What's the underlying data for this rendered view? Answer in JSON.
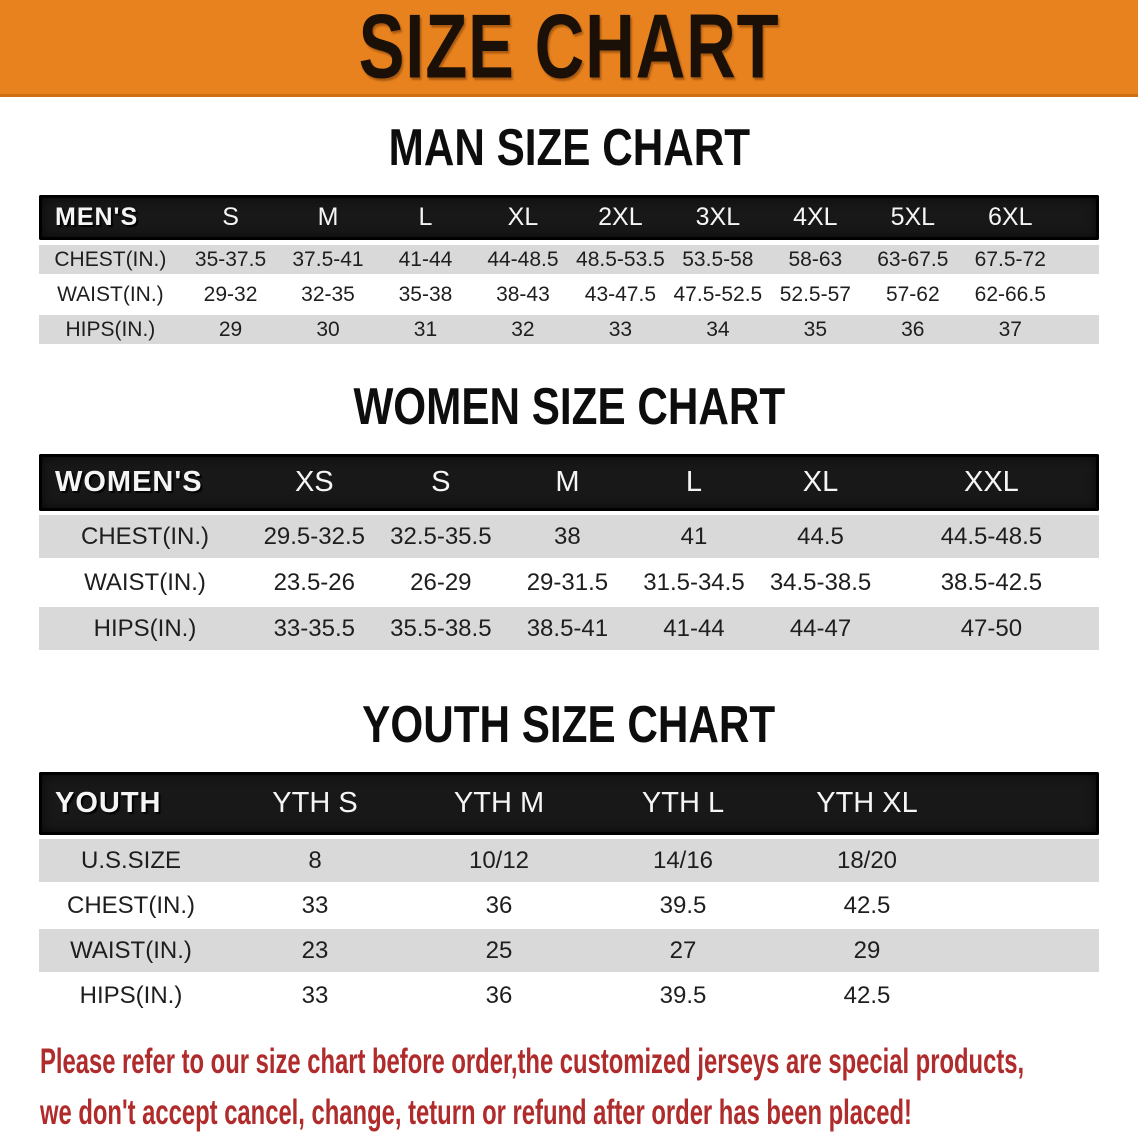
{
  "banner": {
    "title": "SIZE CHART",
    "bg_color": "#E8821E",
    "text_color": "#1A1008"
  },
  "colors": {
    "table_header_bg": "#181818",
    "row_alt_bg": "#D9D9D9",
    "row_bg": "#FFFFFF"
  },
  "sections": {
    "men": {
      "title": "MAN SIZE CHART",
      "header": {
        "label": "MEN'S",
        "sizes": [
          "S",
          "M",
          "L",
          "XL",
          "2XL",
          "3XL",
          "4XL",
          "5XL",
          "6XL"
        ]
      },
      "rows": [
        {
          "label": "CHEST(IN.)",
          "values": [
            "35-37.5",
            "37.5-41",
            "41-44",
            "44-48.5",
            "48.5-53.5",
            "53.5-58",
            "58-63",
            "63-67.5",
            "67.5-72"
          ]
        },
        {
          "label": "WAIST(IN.)",
          "values": [
            "29-32",
            "32-35",
            "35-38",
            "38-43",
            "43-47.5",
            "47.5-52.5",
            "52.5-57",
            "57-62",
            "62-66.5"
          ]
        },
        {
          "label": "HIPS(IN.)",
          "values": [
            "29",
            "30",
            "31",
            "32",
            "33",
            "34",
            "35",
            "36",
            "37"
          ]
        }
      ]
    },
    "women": {
      "title": "WOMEN SIZE CHART",
      "header": {
        "label": "WOMEN'S",
        "sizes": [
          "XS",
          "S",
          "M",
          "L",
          "XL",
          "XXL"
        ]
      },
      "rows": [
        {
          "label": "CHEST(IN.)",
          "values": [
            "29.5-32.5",
            "32.5-35.5",
            "38",
            "41",
            "44.5",
            "44.5-48.5"
          ]
        },
        {
          "label": "WAIST(IN.)",
          "values": [
            "23.5-26",
            "26-29",
            "29-31.5",
            "31.5-34.5",
            "34.5-38.5",
            "38.5-42.5"
          ]
        },
        {
          "label": "HIPS(IN.)",
          "values": [
            "33-35.5",
            "35.5-38.5",
            "38.5-41",
            "41-44",
            "44-47",
            "47-50"
          ]
        }
      ]
    },
    "youth": {
      "title": "YOUTH SIZE CHART",
      "header": {
        "label": "YOUTH",
        "sizes": [
          "YTH S",
          "YTH M",
          "YTH L",
          "YTH XL"
        ]
      },
      "rows": [
        {
          "label": "U.S.SIZE",
          "values": [
            "8",
            "10/12",
            "14/16",
            "18/20"
          ]
        },
        {
          "label": "CHEST(IN.)",
          "values": [
            "33",
            "36",
            "39.5",
            "42.5"
          ]
        },
        {
          "label": "WAIST(IN.)",
          "values": [
            "23",
            "25",
            "27",
            "29"
          ]
        },
        {
          "label": "HIPS(IN.)",
          "values": [
            "33",
            "36",
            "39.5",
            "42.5"
          ]
        }
      ]
    }
  },
  "footer": {
    "line1": "Please refer to our size chart before order,the customized jerseys are special products,",
    "line2": "we don't accept cancel, change, teturn or refund after order has been placed!",
    "text_color": "#B02C2C"
  }
}
